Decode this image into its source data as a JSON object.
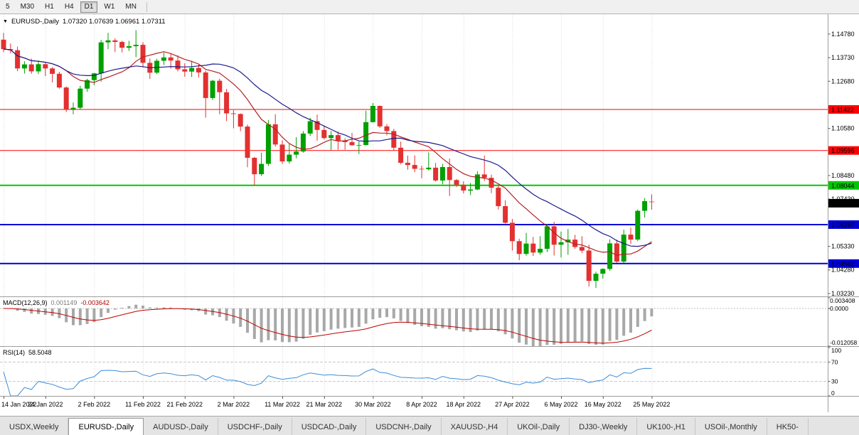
{
  "toolbar": {
    "timeframes": [
      {
        "label": "5",
        "active": false
      },
      {
        "label": "M30",
        "active": false
      },
      {
        "label": "H1",
        "active": false
      },
      {
        "label": "H4",
        "active": false
      },
      {
        "label": "D1",
        "active": true
      },
      {
        "label": "W1",
        "active": false
      },
      {
        "label": "MN",
        "active": false
      }
    ]
  },
  "chart_header": {
    "title": "EURUSD-,Daily",
    "ohlc": "1.07320 1.07639 1.06961 1.07311"
  },
  "macd_header": {
    "label": "MACD(12,26,9)",
    "main": "0.001149",
    "signal": "-0.003642"
  },
  "rsi_header": {
    "label": "RSI(14)",
    "value": "58.5048"
  },
  "tabs": [
    {
      "label": "USDX,Weekly",
      "active": false
    },
    {
      "label": "EURUSD-,Daily",
      "active": true
    },
    {
      "label": "AUDUSD-,Daily",
      "active": false
    },
    {
      "label": "USDCHF-,Daily",
      "active": false
    },
    {
      "label": "USDCAD-,Daily",
      "active": false
    },
    {
      "label": "USDCNH-,Daily",
      "active": false
    },
    {
      "label": "XAUUSD-,H4",
      "active": false
    },
    {
      "label": "UKOil-,Daily",
      "active": false
    },
    {
      "label": "DJ30-,Weekly",
      "active": false
    },
    {
      "label": "UK100-,H1",
      "active": false
    },
    {
      "label": "USOil-,Monthly",
      "active": false
    },
    {
      "label": "HK50-",
      "active": false
    }
  ],
  "chart_data": {
    "type": "candlestick",
    "symbol": "EURUSD-",
    "timeframe": "Daily",
    "current": {
      "open": "1.07320",
      "high": "1.07639",
      "low": "1.06961",
      "close": "1.07311"
    },
    "y_axis": {
      "max": 1.156,
      "min": 1.031,
      "ticks": [
        "1.14780",
        "1.13730",
        "1.12680",
        "1.10580",
        "1.08480",
        "1.07430",
        "1.05330",
        "1.04280",
        "1.03230"
      ]
    },
    "x_ticks": [
      {
        "i": 0,
        "label": "14 Jan 2022"
      },
      {
        "i": 6,
        "label": "24 Jan 2022"
      },
      {
        "i": 13,
        "label": "2 Feb 2022"
      },
      {
        "i": 20,
        "label": "11 Feb 2022"
      },
      {
        "i": 26,
        "label": "21 Feb 2022"
      },
      {
        "i": 33,
        "label": "2 Mar 2022"
      },
      {
        "i": 40,
        "label": "11 Mar 2022"
      },
      {
        "i": 46,
        "label": "21 Mar 2022"
      },
      {
        "i": 53,
        "label": "30 Mar 2022"
      },
      {
        "i": 60,
        "label": "8 Apr 2022"
      },
      {
        "i": 66,
        "label": "18 Apr 2022"
      },
      {
        "i": 73,
        "label": "27 Apr 2022"
      },
      {
        "i": 80,
        "label": "6 May 2022"
      },
      {
        "i": 86,
        "label": "16 May 2022"
      },
      {
        "i": 93,
        "label": "25 May 2022"
      }
    ],
    "hlines": [
      {
        "value": "1.11422",
        "color": "#FF0000",
        "width": 1
      },
      {
        "value": "1.09596",
        "color": "#FF0000",
        "width": 1
      },
      {
        "value": "1.08044",
        "color": "#00C800",
        "width": 2
      },
      {
        "value": "1.06297",
        "color": "#0000D8",
        "width": 2
      },
      {
        "value": "1.04562",
        "color": "#0000D8",
        "width": 2
      }
    ],
    "price_label": {
      "value": "1.07311",
      "bg": "#000000"
    },
    "ma": [
      {
        "period": 10,
        "color": "#B22222"
      },
      {
        "period": 20,
        "color": "#1C1C8C"
      }
    ],
    "macd": {
      "fast": 12,
      "slow": 26,
      "signal": 9,
      "main_value": "0.001149",
      "signal_value": "-0.003642",
      "max": 0.003408,
      "min": -0.012058,
      "axis": [
        {
          "v": 0.003408,
          "label": "0.003408"
        },
        {
          "v": 0,
          "label": "0.0000"
        },
        {
          "v": -0.012058,
          "label": "-0.012058"
        }
      ],
      "hist_color": "#A8A8A8",
      "signal_color": "#C00000"
    },
    "rsi": {
      "period": 14,
      "value": "58.5048",
      "levels": [
        70,
        30
      ],
      "axis": [
        {
          "v": 100,
          "label": "100"
        },
        {
          "v": 70,
          "label": "70"
        },
        {
          "v": 30,
          "label": "30"
        },
        {
          "v": 0,
          "label": "0"
        }
      ],
      "color": "#3C8CD8"
    },
    "colors": {
      "up": "#00A000",
      "down": "#E33030",
      "grid": "#D8D8D8"
    },
    "candles": [
      [
        1.1453,
        1.1483,
        1.1398,
        1.1411
      ],
      [
        1.1411,
        1.1436,
        1.1392,
        1.1406
      ],
      [
        1.1406,
        1.1422,
        1.1313,
        1.1325
      ],
      [
        1.1325,
        1.1357,
        1.1302,
        1.1343
      ],
      [
        1.1343,
        1.1369,
        1.1301,
        1.1312
      ],
      [
        1.1312,
        1.136,
        1.13,
        1.1344
      ],
      [
        1.1344,
        1.1349,
        1.1291,
        1.1325
      ],
      [
        1.1325,
        1.1331,
        1.1263,
        1.1301
      ],
      [
        1.1301,
        1.131,
        1.1235,
        1.124
      ],
      [
        1.124,
        1.1245,
        1.1131,
        1.1144
      ],
      [
        1.1144,
        1.1173,
        1.1121,
        1.115
      ],
      [
        1.115,
        1.1248,
        1.1141,
        1.1235
      ],
      [
        1.1235,
        1.1279,
        1.1221,
        1.1273
      ],
      [
        1.1273,
        1.1305,
        1.125,
        1.1303
      ],
      [
        1.1303,
        1.1452,
        1.1266,
        1.1441
      ],
      [
        1.1441,
        1.1483,
        1.1411,
        1.145
      ],
      [
        1.145,
        1.1459,
        1.1398,
        1.1443
      ],
      [
        1.1443,
        1.1448,
        1.1396,
        1.1417
      ],
      [
        1.1417,
        1.1448,
        1.1403,
        1.1424
      ],
      [
        1.1424,
        1.1495,
        1.1375,
        1.143
      ],
      [
        1.143,
        1.1442,
        1.133,
        1.135
      ],
      [
        1.135,
        1.1369,
        1.1278,
        1.1306
      ],
      [
        1.1306,
        1.1368,
        1.13,
        1.1359
      ],
      [
        1.1359,
        1.1396,
        1.134,
        1.1374
      ],
      [
        1.1374,
        1.1393,
        1.1324,
        1.136
      ],
      [
        1.136,
        1.1384,
        1.1312,
        1.1321
      ],
      [
        1.1321,
        1.1348,
        1.1288,
        1.1311
      ],
      [
        1.1311,
        1.1359,
        1.1287,
        1.1327
      ],
      [
        1.1327,
        1.1342,
        1.1285,
        1.1307
      ],
      [
        1.1307,
        1.1315,
        1.1106,
        1.1193
      ],
      [
        1.1193,
        1.1274,
        1.1184,
        1.127
      ],
      [
        1.127,
        1.1279,
        1.1121,
        1.1219
      ],
      [
        1.1219,
        1.1234,
        1.109,
        1.1125
      ],
      [
        1.1125,
        1.1139,
        1.1058,
        1.1122
      ],
      [
        1.1122,
        1.1125,
        1.1045,
        1.1066
      ],
      [
        1.1066,
        1.1075,
        1.0885,
        1.0927
      ],
      [
        1.0927,
        1.0931,
        1.0806,
        1.0854
      ],
      [
        1.0854,
        1.095,
        1.0846,
        1.09
      ],
      [
        1.09,
        1.1095,
        1.0891,
        1.1076
      ],
      [
        1.1076,
        1.1121,
        1.0977,
        1.0986
      ],
      [
        1.0986,
        1.1005,
        1.09,
        1.0911
      ],
      [
        1.0911,
        1.099,
        1.0901,
        1.0941
      ],
      [
        1.0941,
        1.1019,
        1.0925,
        1.0955
      ],
      [
        1.0955,
        1.1046,
        1.095,
        1.1035
      ],
      [
        1.1035,
        1.1105,
        1.1025,
        1.109
      ],
      [
        1.109,
        1.1119,
        1.1003,
        1.1051
      ],
      [
        1.1051,
        1.1069,
        1.1008,
        1.1015
      ],
      [
        1.1015,
        1.1046,
        1.0962,
        1.1028
      ],
      [
        1.1028,
        1.1044,
        1.0963,
        1.1004
      ],
      [
        1.1004,
        1.1014,
        1.0963,
        1.0997
      ],
      [
        1.0997,
        1.1038,
        1.0981,
        1.0983
      ],
      [
        1.0983,
        1.1,
        1.0944,
        1.0984
      ],
      [
        1.0984,
        1.1137,
        1.0982,
        1.1086
      ],
      [
        1.1086,
        1.1171,
        1.1084,
        1.1158
      ],
      [
        1.1158,
        1.116,
        1.106,
        1.1067
      ],
      [
        1.1067,
        1.1077,
        1.1027,
        1.1046
      ],
      [
        1.1046,
        1.1056,
        1.0961,
        1.0972
      ],
      [
        1.0972,
        1.0999,
        1.0898,
        1.0905
      ],
      [
        1.0905,
        1.0937,
        1.0874,
        1.0895
      ],
      [
        1.0895,
        1.0938,
        1.0863,
        1.0878
      ],
      [
        1.0878,
        1.0892,
        1.0836,
        1.0876
      ],
      [
        1.0876,
        1.0951,
        1.087,
        1.0883
      ],
      [
        1.0883,
        1.0904,
        1.0821,
        1.0826
      ],
      [
        1.0826,
        1.09,
        1.0809,
        1.0886
      ],
      [
        1.0886,
        1.0924,
        1.0757,
        1.0828
      ],
      [
        1.0828,
        1.0832,
        1.0797,
        1.0807
      ],
      [
        1.0807,
        1.0822,
        1.0769,
        1.0781
      ],
      [
        1.0781,
        1.0815,
        1.0761,
        1.0786
      ],
      [
        1.0786,
        1.0867,
        1.0783,
        1.0853
      ],
      [
        1.0853,
        1.0937,
        1.0824,
        1.0838
      ],
      [
        1.0838,
        1.0852,
        1.077,
        1.0794
      ],
      [
        1.0794,
        1.0804,
        1.0697,
        1.0712
      ],
      [
        1.0712,
        1.0738,
        1.0634,
        1.0638
      ],
      [
        1.0638,
        1.0655,
        1.0514,
        1.0556
      ],
      [
        1.0556,
        1.0567,
        1.0471,
        1.0499
      ],
      [
        1.0499,
        1.0593,
        1.0491,
        1.0545
      ],
      [
        1.0545,
        1.0575,
        1.049,
        1.0505
      ],
      [
        1.0505,
        1.0578,
        1.0495,
        1.0522
      ],
      [
        1.0522,
        1.0632,
        1.0507,
        1.0622
      ],
      [
        1.0622,
        1.0642,
        1.0492,
        1.054
      ],
      [
        1.054,
        1.0599,
        1.0483,
        1.0551
      ],
      [
        1.0551,
        1.061,
        1.0495,
        1.0563
      ],
      [
        1.0563,
        1.0584,
        1.0522,
        1.053
      ],
      [
        1.053,
        1.0578,
        1.0503,
        1.0514
      ],
      [
        1.0514,
        1.054,
        1.0354,
        1.0379
      ],
      [
        1.0379,
        1.042,
        1.0348,
        1.0411
      ],
      [
        1.0411,
        1.0435,
        1.0389,
        1.0432
      ],
      [
        1.0432,
        1.0564,
        1.0424,
        1.0546
      ],
      [
        1.0546,
        1.0563,
        1.0459,
        1.0465
      ],
      [
        1.0465,
        1.0607,
        1.0459,
        1.0585
      ],
      [
        1.0585,
        1.0616,
        1.0543,
        1.0563
      ],
      [
        1.0563,
        1.0697,
        1.0556,
        1.0691
      ],
      [
        1.0691,
        1.0748,
        1.0661,
        1.0734
      ],
      [
        1.0732,
        1.0764,
        1.0696,
        1.0731
      ]
    ]
  }
}
